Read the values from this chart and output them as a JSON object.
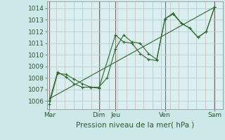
{
  "background_color": "#cce8e8",
  "plot_bg_color": "#daf0f0",
  "grid_color": "#aacccc",
  "line_color": "#2d6a2d",
  "vline_color": "#cc8888",
  "yticks": [
    1006,
    1007,
    1008,
    1009,
    1010,
    1011,
    1012,
    1013,
    1014
  ],
  "xlabel": "Pression niveau de la mer( hPa )",
  "day_labels": [
    "Mar",
    "Dim",
    "Jeu",
    "Ven",
    "Sam"
  ],
  "day_positions": [
    0,
    48,
    64,
    112,
    160
  ],
  "vline_positions": [
    0,
    48,
    64,
    112,
    160
  ],
  "series1_x": [
    0,
    8,
    16,
    24,
    32,
    40,
    48,
    56,
    64,
    72,
    80,
    88,
    96,
    104,
    112,
    120,
    128,
    136,
    144,
    152,
    160
  ],
  "series1_y": [
    1005.7,
    1008.4,
    1008.3,
    1007.9,
    1007.5,
    1007.2,
    1007.2,
    1008.0,
    1010.5,
    1011.7,
    1011.1,
    1011.0,
    1010.1,
    1009.6,
    1013.1,
    1013.6,
    1012.7,
    1012.3,
    1011.5,
    1012.0,
    1014.1
  ],
  "series2_x": [
    0,
    8,
    16,
    24,
    32,
    40,
    48,
    64,
    72,
    80,
    88,
    96,
    104,
    112,
    120,
    128,
    136,
    144,
    152,
    160
  ],
  "series2_y": [
    1006.0,
    1008.5,
    1008.1,
    1007.5,
    1007.2,
    1007.2,
    1007.1,
    1011.7,
    1011.1,
    1011.0,
    1010.1,
    1009.6,
    1009.5,
    1013.1,
    1013.5,
    1012.7,
    1012.3,
    1011.5,
    1012.0,
    1014.1
  ],
  "trend_x": [
    0,
    160
  ],
  "trend_y": [
    1006.2,
    1014.1
  ],
  "xlim": [
    -2,
    168
  ],
  "ylim": [
    1005.3,
    1014.6
  ],
  "xlabel_fontsize": 7.5,
  "tick_fontsize": 6.5,
  "day_fontsize": 6.5
}
